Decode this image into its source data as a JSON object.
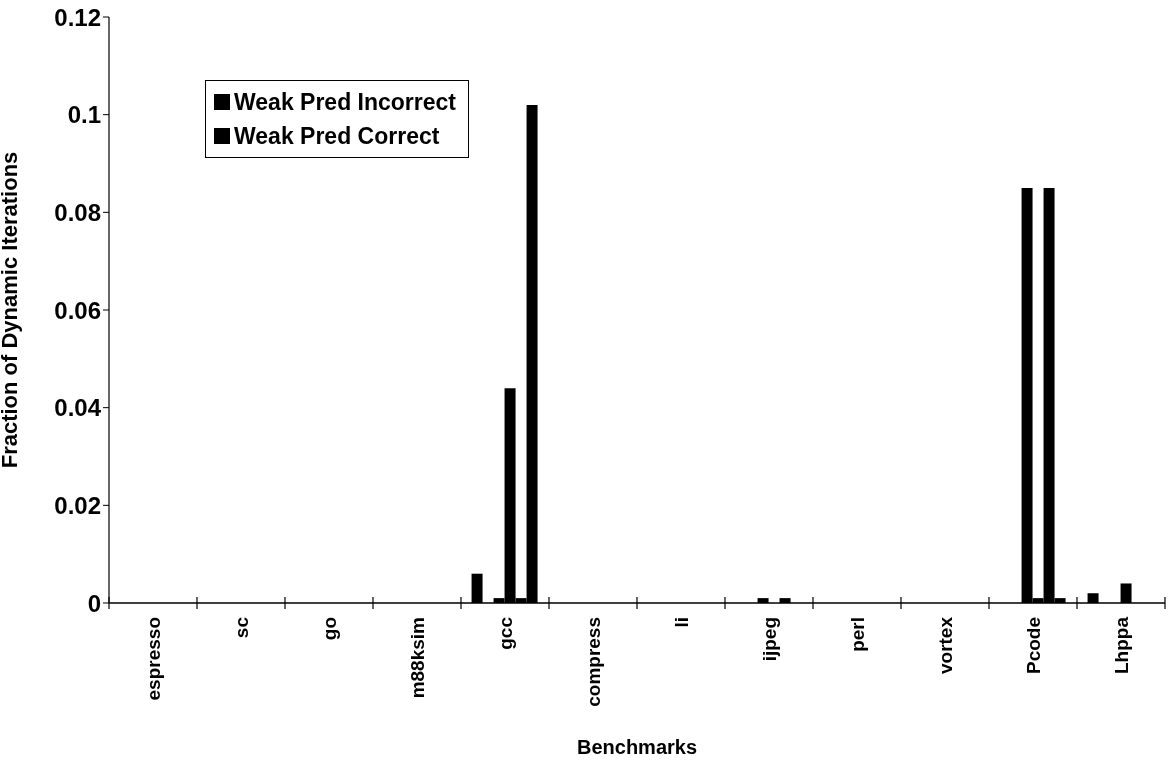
{
  "chart_data": {
    "type": "bar",
    "xlabel": "Benchmarks",
    "ylabel": "Fraction of Dynamic Iterations",
    "categories": [
      "espresso",
      "sc",
      "go",
      "m88ksim",
      "gcc",
      "compress",
      "li",
      "ijpeg",
      "perl",
      "vortex",
      "Pcode",
      "Lhppa"
    ],
    "series": [
      {
        "name": "Weak Pred Incorrect",
        "color": "#000000",
        "values": [
          0,
          0,
          0,
          0,
          0.006,
          0,
          0,
          0,
          0,
          0,
          0,
          0.002
        ]
      },
      {
        "name": "Weak Pred Correct",
        "color": "#000000",
        "values": [
          0,
          0,
          0,
          0,
          0,
          0,
          0,
          0,
          0,
          0,
          0,
          0
        ]
      },
      {
        "color": "#000000",
        "values": [
          0,
          0,
          0,
          0,
          0.001,
          0,
          0,
          0.001,
          0,
          0,
          0.085,
          0
        ]
      },
      {
        "color": "#000000",
        "values": [
          0,
          0,
          0,
          0,
          0.044,
          0,
          0,
          0,
          0,
          0,
          0.001,
          0.004
        ]
      },
      {
        "color": "#000000",
        "values": [
          0,
          0,
          0,
          0,
          0.001,
          0,
          0,
          0.001,
          0,
          0,
          0.085,
          0
        ]
      },
      {
        "color": "#000000",
        "values": [
          0,
          0,
          0,
          0,
          0.102,
          0,
          0,
          0,
          0,
          0,
          0.001,
          0
        ]
      }
    ],
    "ylim": [
      0,
      0.12
    ],
    "yticks": [
      0,
      0.02,
      0.04,
      0.06,
      0.08,
      0.1,
      0.12
    ],
    "legend": "top left"
  }
}
